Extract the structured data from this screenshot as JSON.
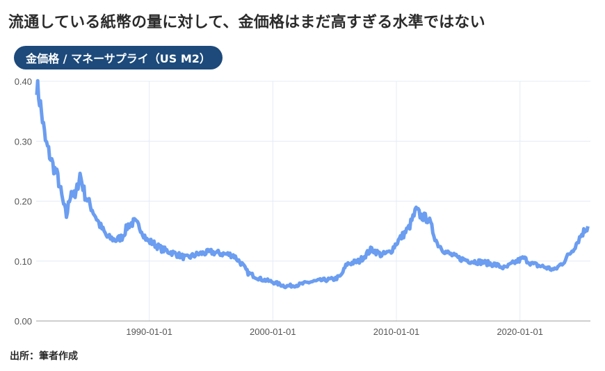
{
  "header": {
    "title": "流通している紙幣の量に対して、金価格はまだ高すぎる水準ではない",
    "badge": "金価格 / マネーサプライ（US M2）"
  },
  "footer": {
    "source": "出所：筆者作成"
  },
  "colors": {
    "line": "#6b9df0",
    "badge": "#1d4a7b",
    "grid": "#e3ecf3",
    "axis": "#bdbdbd"
  },
  "chart_data": {
    "type": "line",
    "title": "金価格 / マネーサプライ（US M2）",
    "xlabel": "",
    "ylabel": "",
    "ylim": [
      0,
      0.4
    ],
    "xlim": [
      1980.85,
      2025.7
    ],
    "yticks": [
      "0.00",
      "0.10",
      "0.20",
      "0.30",
      "0.40"
    ],
    "xticks": [
      {
        "label": "1990-01-01",
        "year": 1990
      },
      {
        "label": "2000-01-01",
        "year": 2000
      },
      {
        "label": "2010-01-01",
        "year": 2010
      },
      {
        "label": "2020-01-01",
        "year": 2020
      }
    ],
    "grid": true,
    "legend": "none",
    "series": [
      {
        "name": "金価格 / マネーサプライ（US M2）",
        "x": [
          1980.9,
          1981.2,
          1981.6,
          1982.2,
          1982.6,
          1983.0,
          1983.3,
          1983.7,
          1984.0,
          1984.4,
          1984.8,
          1985.3,
          1986.0,
          1986.6,
          1987.3,
          1987.8,
          1988.3,
          1988.8,
          1989.3,
          1989.8,
          1990.3,
          1991.0,
          1992.0,
          1993.0,
          1994.0,
          1995.0,
          1996.0,
          1996.8,
          1997.5,
          1998.0,
          1999.0,
          2000.0,
          2001.0,
          2002.0,
          2003.0,
          2004.0,
          2005.0,
          2005.5,
          2006.0,
          2007.0,
          2008.0,
          2008.8,
          2009.5,
          2010.0,
          2011.0,
          2011.6,
          2012.0,
          2012.6,
          2013.3,
          2014.0,
          2015.0,
          2016.0,
          2017.0,
          2018.0,
          2018.8,
          2019.5,
          2020.3,
          2021.0,
          2022.0,
          2022.8,
          2023.5,
          2024.3,
          2025.0,
          2025.5
        ],
        "values": [
          0.395,
          0.36,
          0.3,
          0.26,
          0.24,
          0.2,
          0.175,
          0.22,
          0.205,
          0.245,
          0.21,
          0.19,
          0.16,
          0.14,
          0.135,
          0.14,
          0.16,
          0.165,
          0.155,
          0.135,
          0.13,
          0.12,
          0.113,
          0.105,
          0.112,
          0.115,
          0.112,
          0.11,
          0.095,
          0.08,
          0.07,
          0.065,
          0.058,
          0.06,
          0.065,
          0.068,
          0.07,
          0.075,
          0.095,
          0.1,
          0.12,
          0.11,
          0.115,
          0.13,
          0.155,
          0.185,
          0.175,
          0.17,
          0.13,
          0.115,
          0.105,
          0.1,
          0.098,
          0.094,
          0.088,
          0.097,
          0.105,
          0.095,
          0.09,
          0.085,
          0.098,
          0.12,
          0.145,
          0.158
        ]
      }
    ]
  }
}
